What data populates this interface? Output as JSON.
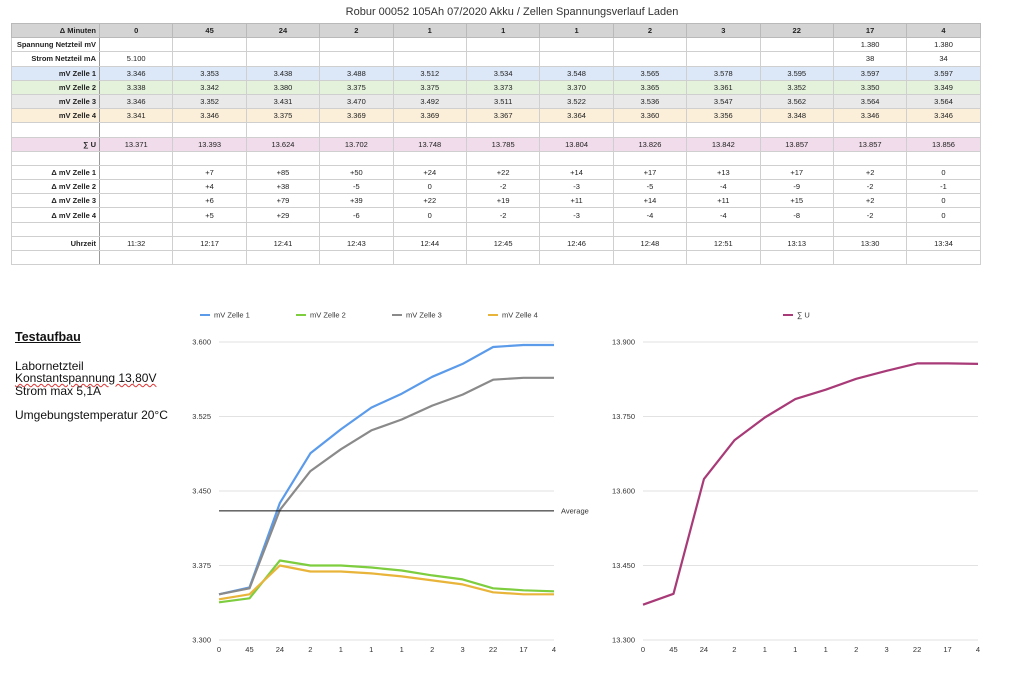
{
  "title": "Robur 00052 105Ah 07/2020 Akku / Zellen Spannungsverlauf Laden",
  "table": {
    "header_label": "Δ Minuten",
    "columns": [
      "0",
      "45",
      "24",
      "2",
      "1",
      "1",
      "1",
      "2",
      "3",
      "22",
      "17",
      "4"
    ],
    "rows": [
      {
        "label": "Spannung Netzteil mV",
        "cls": "plain",
        "cells": [
          "",
          "",
          "",
          "",
          "",
          "",
          "",
          "",
          "",
          "",
          "1.380",
          "1.380"
        ]
      },
      {
        "label": "Strom Netzteil mA",
        "cls": "plain",
        "cells": [
          "5.100",
          "",
          "",
          "",
          "",
          "",
          "",
          "",
          "",
          "",
          "38",
          "34"
        ]
      },
      {
        "label": "mV Zelle 1",
        "cls": "z1",
        "cells": [
          "3.346",
          "3.353",
          "3.438",
          "3.488",
          "3.512",
          "3.534",
          "3.548",
          "3.565",
          "3.578",
          "3.595",
          "3.597",
          "3.597"
        ]
      },
      {
        "label": "mV Zelle 2",
        "cls": "z2",
        "cells": [
          "3.338",
          "3.342",
          "3.380",
          "3.375",
          "3.375",
          "3.373",
          "3.370",
          "3.365",
          "3.361",
          "3.352",
          "3.350",
          "3.349"
        ]
      },
      {
        "label": "mV Zelle 3",
        "cls": "z3",
        "cells": [
          "3.346",
          "3.352",
          "3.431",
          "3.470",
          "3.492",
          "3.511",
          "3.522",
          "3.536",
          "3.547",
          "3.562",
          "3.564",
          "3.564"
        ]
      },
      {
        "label": "mV Zelle 4",
        "cls": "z4",
        "cells": [
          "3.341",
          "3.346",
          "3.375",
          "3.369",
          "3.369",
          "3.367",
          "3.364",
          "3.360",
          "3.356",
          "3.348",
          "3.346",
          "3.346"
        ]
      },
      {
        "label": "",
        "cls": "plain",
        "cells": [
          "",
          "",
          "",
          "",
          "",
          "",
          "",
          "",
          "",
          "",
          "",
          ""
        ]
      },
      {
        "label": "∑ U",
        "cls": "sum",
        "cells": [
          "13.371",
          "13.393",
          "13.624",
          "13.702",
          "13.748",
          "13.785",
          "13.804",
          "13.826",
          "13.842",
          "13.857",
          "13.857",
          "13.856"
        ]
      },
      {
        "label": "",
        "cls": "plain",
        "cells": [
          "",
          "",
          "",
          "",
          "",
          "",
          "",
          "",
          "",
          "",
          "",
          ""
        ]
      },
      {
        "label": "Δ mV Zelle 1",
        "cls": "plain",
        "cells": [
          "",
          "+7",
          "+85",
          "+50",
          "+24",
          "+22",
          "+14",
          "+17",
          "+13",
          "+17",
          "+2",
          "0"
        ]
      },
      {
        "label": "Δ mV Zelle 2",
        "cls": "plain",
        "cells": [
          "",
          "+4",
          "+38",
          "-5",
          "0",
          "-2",
          "-3",
          "-5",
          "-4",
          "-9",
          "-2",
          "-1"
        ]
      },
      {
        "label": "Δ mV Zelle 3",
        "cls": "plain",
        "cells": [
          "",
          "+6",
          "+79",
          "+39",
          "+22",
          "+19",
          "+11",
          "+14",
          "+11",
          "+15",
          "+2",
          "0"
        ]
      },
      {
        "label": "Δ mV Zelle 4",
        "cls": "plain",
        "cells": [
          "",
          "+5",
          "+29",
          "-6",
          "0",
          "-2",
          "-3",
          "-4",
          "-4",
          "-8",
          "-2",
          "0"
        ]
      },
      {
        "label": "",
        "cls": "plain",
        "cells": [
          "",
          "",
          "",
          "",
          "",
          "",
          "",
          "",
          "",
          "",
          "",
          ""
        ]
      },
      {
        "label": "Uhrzeit",
        "cls": "plain",
        "cells": [
          "11:32",
          "12:17",
          "12:41",
          "12:43",
          "12:44",
          "12:45",
          "12:46",
          "12:48",
          "12:51",
          "13:13",
          "13:30",
          "13:34"
        ]
      },
      {
        "label": "",
        "cls": "plain",
        "cells": [
          "",
          "",
          "",
          "",
          "",
          "",
          "",
          "",
          "",
          "",
          "",
          ""
        ]
      }
    ]
  },
  "test_setup": {
    "heading": "Testaufbau",
    "line1": "Labornetzteil",
    "line2": "Konstantspannung 13,80V",
    "line3": "Strom max 5,1A",
    "line4": "Umgebungstemperatur 20°C"
  },
  "chart_data": [
    {
      "type": "line",
      "categories": [
        "0",
        "45",
        "24",
        "2",
        "1",
        "1",
        "1",
        "2",
        "3",
        "22",
        "17",
        "4"
      ],
      "ylim": [
        3.3,
        3.6
      ],
      "yticks": [
        "3.600",
        "3.525",
        "3.450",
        "3.375",
        "3.300"
      ],
      "ytick_values": [
        3.6,
        3.525,
        3.45,
        3.375,
        3.3
      ],
      "legend_position": "top",
      "series": [
        {
          "name": "mV Zelle 1",
          "color": "#5b9bea",
          "values": [
            3.346,
            3.353,
            3.438,
            3.488,
            3.512,
            3.534,
            3.548,
            3.565,
            3.578,
            3.595,
            3.597,
            3.597
          ]
        },
        {
          "name": "mV Zelle 2",
          "color": "#7dcd3f",
          "values": [
            3.338,
            3.342,
            3.38,
            3.375,
            3.375,
            3.373,
            3.37,
            3.365,
            3.361,
            3.352,
            3.35,
            3.349
          ]
        },
        {
          "name": "mV Zelle 3",
          "color": "#8a8a8a",
          "values": [
            3.346,
            3.352,
            3.431,
            3.47,
            3.492,
            3.511,
            3.522,
            3.536,
            3.547,
            3.562,
            3.564,
            3.564
          ]
        },
        {
          "name": "mV Zelle 4",
          "color": "#e9b43a",
          "values": [
            3.341,
            3.346,
            3.375,
            3.369,
            3.369,
            3.367,
            3.364,
            3.36,
            3.356,
            3.348,
            3.346,
            3.346
          ]
        }
      ],
      "reference_line": {
        "label": "Average",
        "value": 3.43,
        "color": "#111111"
      }
    },
    {
      "type": "line",
      "categories": [
        "0",
        "45",
        "24",
        "2",
        "1",
        "1",
        "1",
        "2",
        "3",
        "22",
        "17",
        "4"
      ],
      "ylim": [
        13.3,
        13.9
      ],
      "yticks": [
        "13.900",
        "13.750",
        "13.600",
        "13.450",
        "13.300"
      ],
      "ytick_values": [
        13.9,
        13.75,
        13.6,
        13.45,
        13.3
      ],
      "legend_position": "top",
      "series": [
        {
          "name": "∑ U",
          "color": "#a83a78",
          "values": [
            13.371,
            13.393,
            13.624,
            13.702,
            13.748,
            13.785,
            13.804,
            13.826,
            13.842,
            13.857,
            13.857,
            13.856
          ]
        }
      ]
    }
  ]
}
